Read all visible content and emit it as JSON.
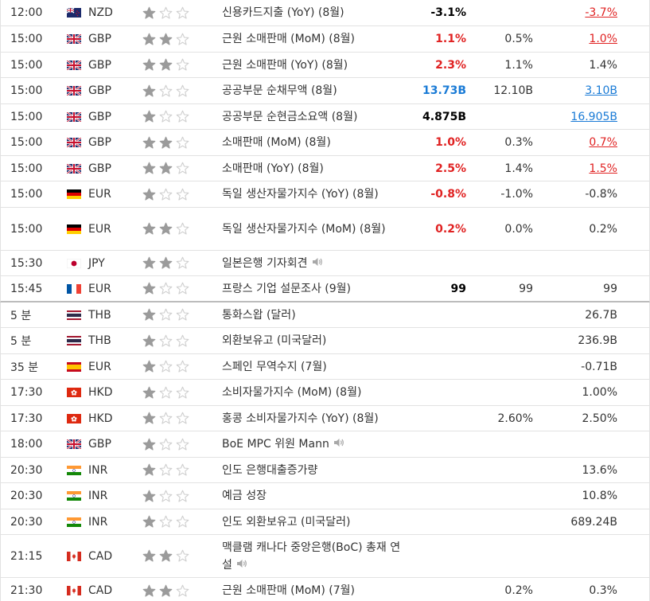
{
  "colors": {
    "red": "#e02222",
    "blue": "#1a7bd6",
    "star_on": "#9b9b9b",
    "star_off": "#cfcfcf"
  },
  "rows": [
    {
      "time": "12:00",
      "flag": "nz",
      "currency": "NZD",
      "stars": 1,
      "event": "신용카드지출 (YoY) (8월)",
      "actual": "-3.1%",
      "actual_color": "black",
      "forecast": "",
      "previous": "-3.7%",
      "prev_color": "red",
      "h": 33
    },
    {
      "time": "15:00",
      "flag": "gb",
      "currency": "GBP",
      "stars": 2,
      "event": "근원 소매판매 (MoM) (8월)",
      "actual": "1.1%",
      "actual_color": "red",
      "forecast": "0.5%",
      "previous": "1.0%",
      "prev_color": "red",
      "h": 33
    },
    {
      "time": "15:00",
      "flag": "gb",
      "currency": "GBP",
      "stars": 2,
      "event": "근원 소매판매 (YoY) (8월)",
      "actual": "2.3%",
      "actual_color": "red",
      "forecast": "1.1%",
      "previous": "1.4%",
      "prev_color": "",
      "h": 32
    },
    {
      "time": "15:00",
      "flag": "gb",
      "currency": "GBP",
      "stars": 1,
      "event": "공공부문 순채무액 (8월)",
      "actual": "13.73B",
      "actual_color": "blue",
      "forecast": "12.10B",
      "previous": "3.10B",
      "prev_color": "blue",
      "h": 33
    },
    {
      "time": "15:00",
      "flag": "gb",
      "currency": "GBP",
      "stars": 1,
      "event": "공공부문 순현금소요액 (8월)",
      "actual": "4.875B",
      "actual_color": "black",
      "forecast": "",
      "previous": "16.905B",
      "prev_color": "blue",
      "h": 32
    },
    {
      "time": "15:00",
      "flag": "gb",
      "currency": "GBP",
      "stars": 2,
      "event": "소매판매 (MoM) (8월)",
      "actual": "1.0%",
      "actual_color": "red",
      "forecast": "0.3%",
      "previous": "0.7%",
      "prev_color": "red",
      "h": 33
    },
    {
      "time": "15:00",
      "flag": "gb",
      "currency": "GBP",
      "stars": 2,
      "event": "소매판매 (YoY) (8월)",
      "actual": "2.5%",
      "actual_color": "red",
      "forecast": "1.4%",
      "previous": "1.5%",
      "prev_color": "red",
      "h": 32
    },
    {
      "time": "15:00",
      "flag": "de",
      "currency": "EUR",
      "stars": 1,
      "event": "독일 생산자물가지수 (YoY) (8월)",
      "actual": "-0.8%",
      "actual_color": "red",
      "forecast": "-1.0%",
      "previous": "-0.8%",
      "prev_color": "",
      "h": 33
    },
    {
      "time": "15:00",
      "flag": "de",
      "currency": "EUR",
      "stars": 2,
      "event": "독일 생산자물가지수 (MoM) (8월)",
      "actual": "0.2%",
      "actual_color": "red",
      "forecast": "0.0%",
      "previous": "0.2%",
      "prev_color": "",
      "h": 54
    },
    {
      "time": "15:30",
      "flag": "jp",
      "currency": "JPY",
      "stars": 2,
      "event": "일본은행 기자회견",
      "speech": true,
      "actual": "",
      "actual_color": "",
      "forecast": "",
      "previous": "",
      "prev_color": "",
      "h": 32
    },
    {
      "time": "15:45",
      "flag": "fr",
      "currency": "EUR",
      "stars": 1,
      "event": "프랑스 기업 설문조사 (9월)",
      "actual": "99",
      "actual_color": "black",
      "forecast": "99",
      "previous": "99",
      "prev_color": "",
      "h": 33,
      "sep": true
    },
    {
      "time": "5 분",
      "flag": "th",
      "currency": "THB",
      "stars": 1,
      "event": "통화스왑 (달러)",
      "actual": "",
      "actual_color": "",
      "forecast": "",
      "previous": "26.7B",
      "prev_color": "",
      "h": 32
    },
    {
      "time": "5 분",
      "flag": "th",
      "currency": "THB",
      "stars": 1,
      "event": "외환보유고 (미국달러)",
      "actual": "",
      "actual_color": "",
      "forecast": "",
      "previous": "236.9B",
      "prev_color": "",
      "h": 33
    },
    {
      "time": "35 분",
      "flag": "es",
      "currency": "EUR",
      "stars": 1,
      "event": "스페인 무역수지 (7월)",
      "actual": "",
      "actual_color": "",
      "forecast": "",
      "previous": "-0.71B",
      "prev_color": "",
      "h": 32
    },
    {
      "time": "17:30",
      "flag": "hk",
      "currency": "HKD",
      "stars": 1,
      "event": "소비자물가지수 (MoM) (8월)",
      "actual": "",
      "actual_color": "",
      "forecast": "",
      "previous": "1.00%",
      "prev_color": "",
      "h": 33
    },
    {
      "time": "17:30",
      "flag": "hk",
      "currency": "HKD",
      "stars": 1,
      "event": "홍콩 소비자물가지수 (YoY) (8월)",
      "actual": "",
      "actual_color": "",
      "forecast": "2.60%",
      "previous": "2.50%",
      "prev_color": "",
      "h": 32
    },
    {
      "time": "18:00",
      "flag": "gb",
      "currency": "GBP",
      "stars": 1,
      "event": "BoE MPC 위원 Mann",
      "speech": true,
      "actual": "",
      "actual_color": "",
      "forecast": "",
      "previous": "",
      "prev_color": "",
      "h": 33
    },
    {
      "time": "20:30",
      "flag": "in",
      "currency": "INR",
      "stars": 1,
      "event": "인도 은행대출증가량",
      "actual": "",
      "actual_color": "",
      "forecast": "",
      "previous": "13.6%",
      "prev_color": "",
      "h": 32
    },
    {
      "time": "20:30",
      "flag": "in",
      "currency": "INR",
      "stars": 1,
      "event": "예금 성장",
      "actual": "",
      "actual_color": "",
      "forecast": "",
      "previous": "10.8%",
      "prev_color": "",
      "h": 33
    },
    {
      "time": "20:30",
      "flag": "in",
      "currency": "INR",
      "stars": 1,
      "event": "인도 외환보유고 (미국달러)",
      "actual": "",
      "actual_color": "",
      "forecast": "",
      "previous": "689.24B",
      "prev_color": "",
      "h": 32
    },
    {
      "time": "21:15",
      "flag": "ca",
      "currency": "CAD",
      "stars": 2,
      "event": "맥클램 캐나다 중앙은행(BoC) 총재 연설",
      "speech": true,
      "actual": "",
      "actual_color": "",
      "forecast": "",
      "previous": "",
      "prev_color": "",
      "h": 54
    },
    {
      "time": "21:30",
      "flag": "ca",
      "currency": "CAD",
      "stars": 2,
      "event": "근원 소매판매 (MoM) (7월)",
      "actual": "",
      "actual_color": "",
      "forecast": "0.2%",
      "previous": "0.3%",
      "prev_color": "",
      "h": 33
    }
  ]
}
